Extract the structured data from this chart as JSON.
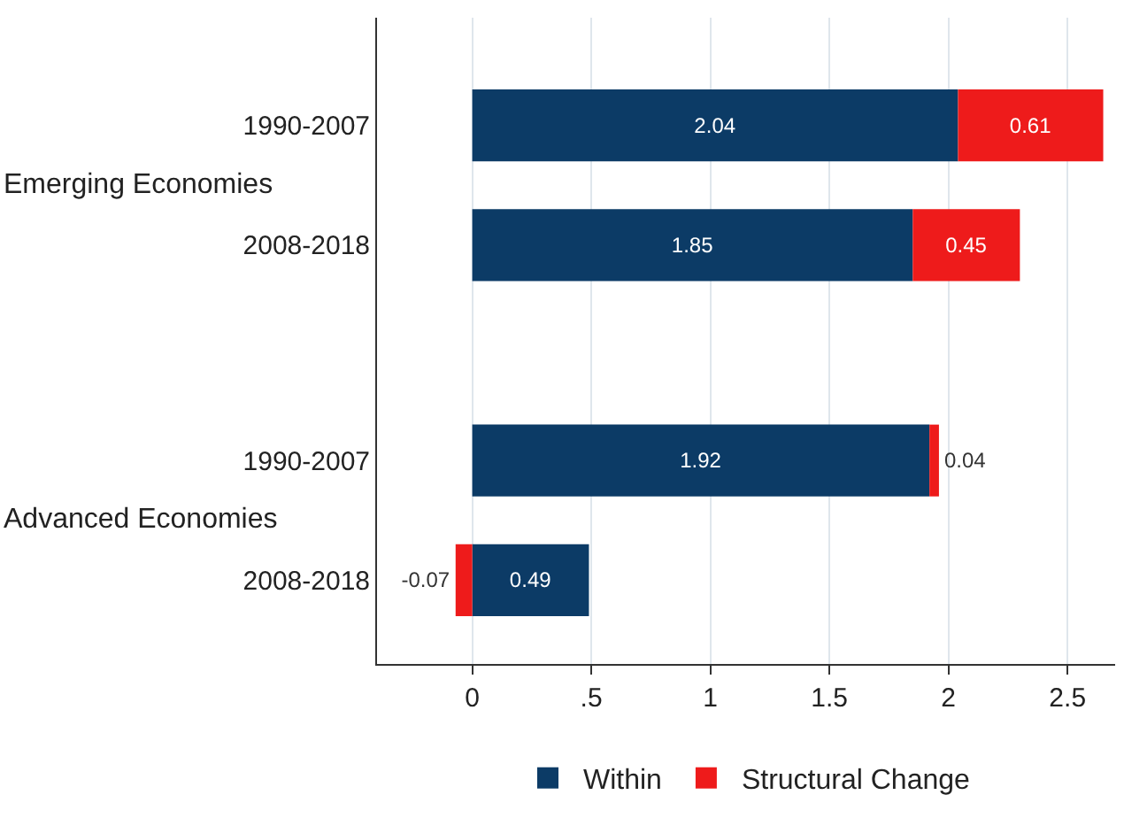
{
  "chart_data": {
    "type": "bar",
    "orientation": "horizontal",
    "stacked": true,
    "categories": [
      "1990-2007",
      "2008-2018",
      "1990-2007",
      "2008-2018"
    ],
    "annotations": [
      "Emerging Economies",
      "Advanced Economies"
    ],
    "series": [
      {
        "name": "Within",
        "color": "#0c3b66",
        "values": [
          2.04,
          1.85,
          1.92,
          0.49
        ]
      },
      {
        "name": "Structural Change",
        "color": "#ee1b1b",
        "values": [
          0.61,
          0.45,
          0.04,
          -0.07
        ]
      }
    ],
    "data_labels": true,
    "xlim": [
      -0.4,
      2.7
    ],
    "xticks": [
      0,
      {
        "value": 0.5,
        "label": ".5"
      },
      1,
      1.5,
      2,
      2.5
    ],
    "grid": "x",
    "legend": "bottom"
  }
}
